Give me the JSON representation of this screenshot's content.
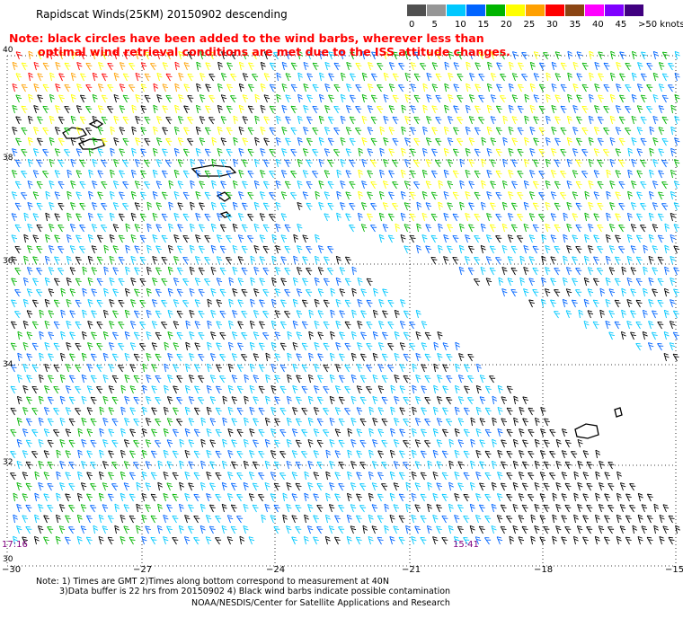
{
  "title": "Rapidscat Winds(25KM) 20150902 descending",
  "note_line1": "Note: black circles have been added to the wind barbs, wherever less than",
  "note_line2": "optimal wind retrieval conditions are met due to the ISS attitude changes.",
  "legend": {
    "labels": [
      "0",
      "5",
      "10",
      "15",
      "20",
      "25",
      "30",
      "35",
      "40",
      "45",
      ">50 knots"
    ],
    "colors": [
      "#505050",
      "#969696",
      "#00c8ff",
      "#0064ff",
      "#00b400",
      "#ffff00",
      "#ffa000",
      "#ff0000",
      "#8b4513",
      "#ff00ff",
      "#7f00ff",
      "#400080"
    ]
  },
  "lat_labels": [
    "40",
    "38",
    "36",
    "34",
    "32",
    "30"
  ],
  "lon_labels": [
    "−30",
    "−27",
    "−24",
    "−21",
    "−18",
    "−15"
  ],
  "pass_times": [
    "17:16",
    "15:41"
  ],
  "footer": {
    "line1": "Note: 1) Times are GMT 2)Times along bottom correspond to measurement at 40N",
    "line2": "3)Data buffer is 22 hrs from 20150902 4) Black wind barbs indicate possible contamination",
    "line3": "NOAA/NESDIS/Center for Satellite Applications and Research"
  }
}
